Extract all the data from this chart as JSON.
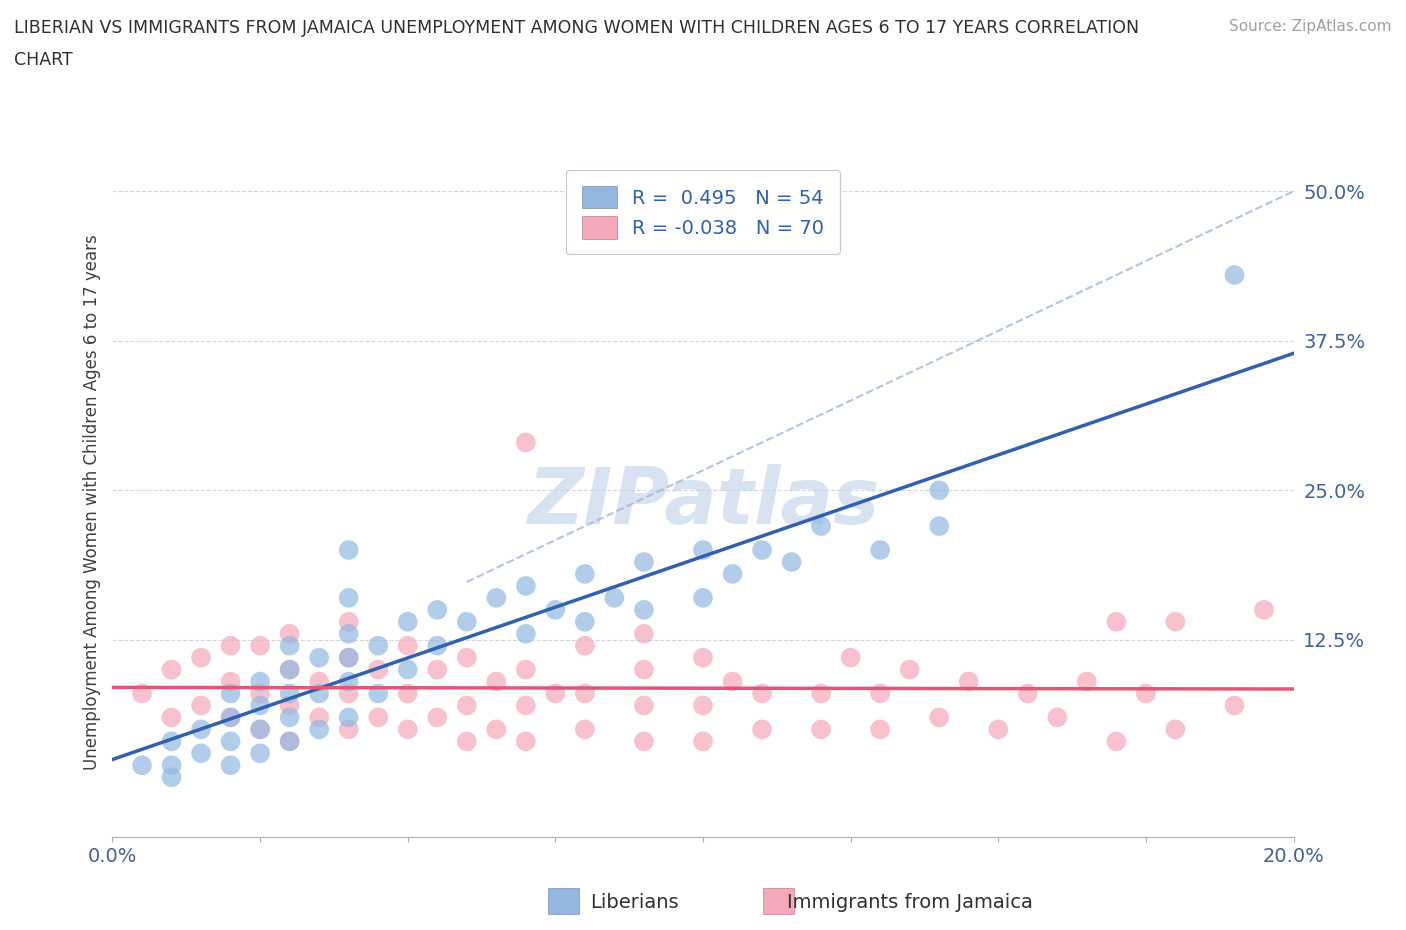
{
  "title_line1": "LIBERIAN VS IMMIGRANTS FROM JAMAICA UNEMPLOYMENT AMONG WOMEN WITH CHILDREN AGES 6 TO 17 YEARS CORRELATION",
  "title_line2": "CHART",
  "source": "Source: ZipAtlas.com",
  "ylabel": "Unemployment Among Women with Children Ages 6 to 17 years",
  "xlim": [
    0.0,
    0.2
  ],
  "ylim": [
    -0.04,
    0.52
  ],
  "xticks": [
    0.0,
    0.025,
    0.05,
    0.075,
    0.1,
    0.125,
    0.15,
    0.175,
    0.2
  ],
  "xticklabels": [
    "0.0%",
    "",
    "",
    "",
    "",
    "",
    "",
    "",
    "20.0%"
  ],
  "yticks": [
    0.0,
    0.125,
    0.25,
    0.375,
    0.5
  ],
  "yticklabels": [
    "",
    "12.5%",
    "25.0%",
    "37.5%",
    "50.0%"
  ],
  "liberian_R": 0.495,
  "liberian_N": 54,
  "jamaica_R": -0.038,
  "jamaica_N": 70,
  "liberian_color": "#92b8e0",
  "jamaica_color": "#f4a8b8",
  "liberian_line_color": "#3060b0",
  "jamaica_line_color": "#e05878",
  "dash_line_color": "#a0b8d8",
  "grid_color": "#d8d8d8",
  "watermark": "ZIPatlas",
  "watermark_color": "#c0d0e8",
  "legend_text_color": "#3060b0",
  "liberian_x": [
    0.005,
    0.01,
    0.01,
    0.01,
    0.015,
    0.015,
    0.02,
    0.02,
    0.02,
    0.02,
    0.025,
    0.025,
    0.025,
    0.025,
    0.03,
    0.03,
    0.03,
    0.03,
    0.03,
    0.035,
    0.035,
    0.035,
    0.04,
    0.04,
    0.04,
    0.04,
    0.04,
    0.04,
    0.045,
    0.045,
    0.05,
    0.05,
    0.055,
    0.055,
    0.06,
    0.065,
    0.07,
    0.07,
    0.075,
    0.08,
    0.08,
    0.085,
    0.09,
    0.09,
    0.1,
    0.1,
    0.105,
    0.11,
    0.115,
    0.12,
    0.13,
    0.14,
    0.14,
    0.19
  ],
  "liberian_y": [
    0.02,
    0.01,
    0.02,
    0.04,
    0.03,
    0.05,
    0.02,
    0.04,
    0.06,
    0.08,
    0.03,
    0.05,
    0.07,
    0.09,
    0.04,
    0.06,
    0.08,
    0.1,
    0.12,
    0.05,
    0.08,
    0.11,
    0.06,
    0.09,
    0.11,
    0.13,
    0.16,
    0.2,
    0.08,
    0.12,
    0.1,
    0.14,
    0.12,
    0.15,
    0.14,
    0.16,
    0.13,
    0.17,
    0.15,
    0.14,
    0.18,
    0.16,
    0.15,
    0.19,
    0.16,
    0.2,
    0.18,
    0.2,
    0.19,
    0.22,
    0.2,
    0.22,
    0.25,
    0.43
  ],
  "jamaica_x": [
    0.005,
    0.01,
    0.01,
    0.015,
    0.015,
    0.02,
    0.02,
    0.02,
    0.025,
    0.025,
    0.025,
    0.03,
    0.03,
    0.03,
    0.03,
    0.035,
    0.035,
    0.04,
    0.04,
    0.04,
    0.04,
    0.045,
    0.045,
    0.05,
    0.05,
    0.05,
    0.055,
    0.055,
    0.06,
    0.06,
    0.06,
    0.065,
    0.065,
    0.07,
    0.07,
    0.07,
    0.07,
    0.075,
    0.08,
    0.08,
    0.08,
    0.09,
    0.09,
    0.09,
    0.09,
    0.1,
    0.1,
    0.1,
    0.105,
    0.11,
    0.11,
    0.12,
    0.12,
    0.125,
    0.13,
    0.13,
    0.135,
    0.14,
    0.145,
    0.15,
    0.155,
    0.16,
    0.165,
    0.17,
    0.17,
    0.175,
    0.18,
    0.18,
    0.19,
    0.195
  ],
  "jamaica_y": [
    0.08,
    0.06,
    0.1,
    0.07,
    0.11,
    0.06,
    0.09,
    0.12,
    0.05,
    0.08,
    0.12,
    0.04,
    0.07,
    0.1,
    0.13,
    0.06,
    0.09,
    0.05,
    0.08,
    0.11,
    0.14,
    0.06,
    0.1,
    0.05,
    0.08,
    0.12,
    0.06,
    0.1,
    0.04,
    0.07,
    0.11,
    0.05,
    0.09,
    0.04,
    0.07,
    0.1,
    0.29,
    0.08,
    0.05,
    0.08,
    0.12,
    0.04,
    0.07,
    0.1,
    0.13,
    0.04,
    0.07,
    0.11,
    0.09,
    0.05,
    0.08,
    0.05,
    0.08,
    0.11,
    0.05,
    0.08,
    0.1,
    0.06,
    0.09,
    0.05,
    0.08,
    0.06,
    0.09,
    0.04,
    0.14,
    0.08,
    0.05,
    0.14,
    0.07,
    0.15
  ]
}
